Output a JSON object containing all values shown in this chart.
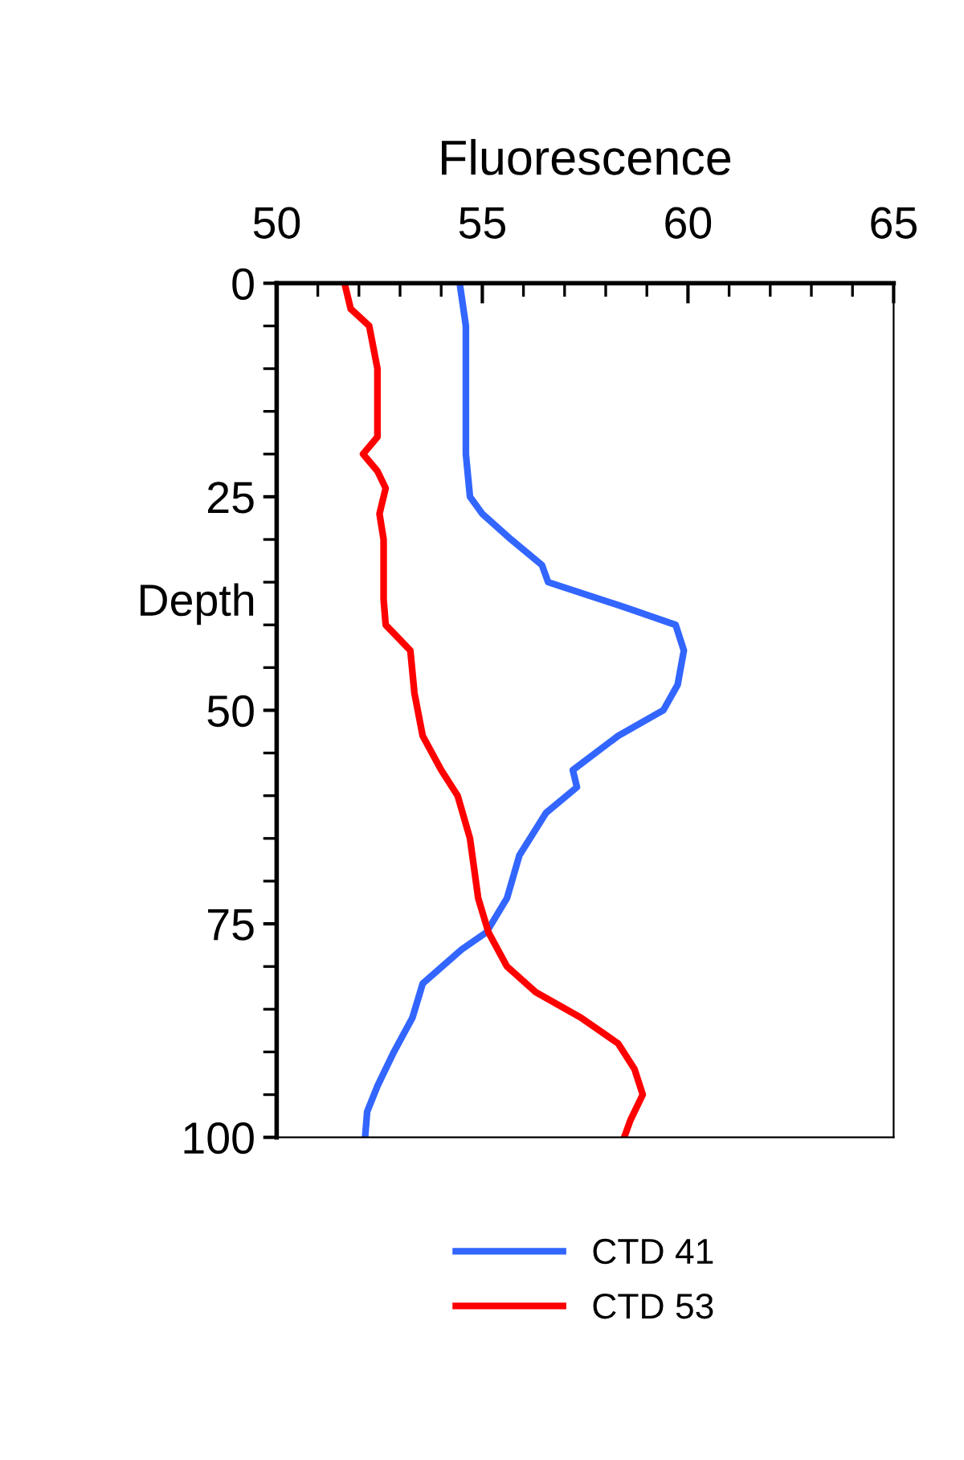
{
  "chart_data": {
    "type": "line",
    "xlabel": "Fluorescence",
    "ylabel": "Depth",
    "xlim": [
      50,
      65
    ],
    "xticks": [
      50,
      55,
      60,
      65
    ],
    "ylim": [
      100,
      0
    ],
    "yticks": [
      0,
      25,
      50,
      75,
      100
    ],
    "grid": false,
    "legend": "bottom",
    "marker": "none",
    "line_style": "solid",
    "series": [
      {
        "name": "CTD 41",
        "color": "#3366ff",
        "x": [
          54.45,
          54.6,
          54.6,
          54.7,
          55.0,
          55.7,
          56.45,
          56.6,
          58.5,
          59.7,
          59.9,
          59.75,
          59.4,
          58.3,
          57.2,
          57.3,
          56.55,
          55.9,
          55.6,
          55.1,
          54.5,
          53.55,
          53.3,
          52.85,
          52.45,
          52.2,
          52.15
        ],
        "values": [
          0,
          5,
          20,
          25,
          27,
          30,
          33,
          35,
          38,
          40,
          43,
          47,
          50,
          53,
          57,
          59,
          62,
          67,
          72,
          76,
          78,
          82,
          86,
          90,
          94,
          97,
          100
        ]
      },
      {
        "name": "CTD 53",
        "color": "#ff0000",
        "x": [
          51.65,
          51.8,
          52.25,
          52.45,
          52.45,
          52.1,
          52.45,
          52.65,
          52.5,
          52.6,
          52.6,
          52.65,
          53.25,
          53.35,
          53.55,
          54.0,
          54.4,
          54.7,
          54.9,
          55.15,
          55.6,
          56.3,
          57.4,
          58.3,
          58.7,
          58.9,
          58.6,
          58.45
        ],
        "values": [
          0,
          3,
          5,
          10,
          18,
          20,
          22,
          24,
          27,
          30,
          37,
          40,
          43,
          48,
          53,
          57,
          60,
          65,
          72,
          76,
          80,
          83,
          86,
          89,
          92,
          95,
          98,
          100
        ]
      }
    ]
  }
}
